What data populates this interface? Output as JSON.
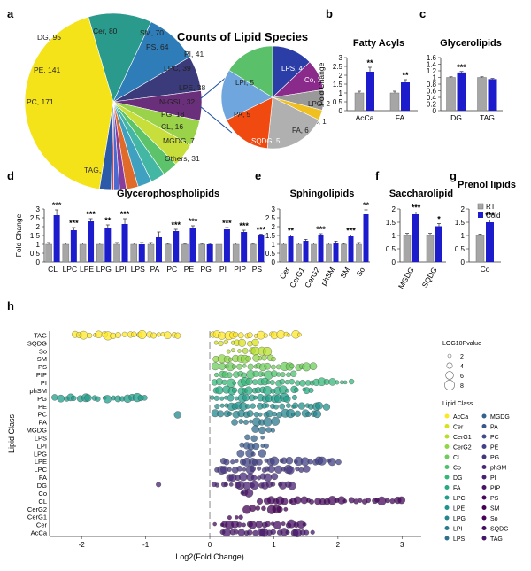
{
  "panel_letters": [
    "a",
    "b",
    "c",
    "d",
    "e",
    "f",
    "g",
    "h"
  ],
  "colors": {
    "rt": "#a6a6a6",
    "cold": "#1c1ccc",
    "err": "#444444"
  },
  "chart_data": [
    {
      "id": "a",
      "type": "pie",
      "title": "Counts of Lipid Species",
      "slices": [
        {
          "label": "TAG, 635",
          "value": 635,
          "color": "#f5e31a"
        },
        {
          "label": "PC, 171",
          "value": 171,
          "color": "#2a9a8c"
        },
        {
          "label": "PE, 141",
          "value": 141,
          "color": "#2e7db8"
        },
        {
          "label": "DG, 95",
          "value": 95,
          "color": "#3b3a7a"
        },
        {
          "label": "Cer, 80",
          "value": 80,
          "color": "#6a2f7a"
        },
        {
          "label": "SM, 70",
          "value": 70,
          "color": "#9ad24a"
        },
        {
          "label": "PS, 64",
          "value": 64,
          "color": "#c8de3a"
        },
        {
          "label": "PI, 41",
          "value": 41,
          "color": "#5cc36a"
        },
        {
          "label": "LPC, 39",
          "value": 39,
          "color": "#44b6a4"
        },
        {
          "label": "LPE, 38",
          "value": 38,
          "color": "#3fa0c0"
        },
        {
          "label": "N-GSL, 32",
          "value": 32,
          "color": "#e06a2a"
        },
        {
          "label": "PG, 18",
          "value": 18,
          "color": "#8a3c9a"
        },
        {
          "label": "CL, 16",
          "value": 16,
          "color": "#4a6ad0"
        },
        {
          "label": "MGDG, 7",
          "value": 7,
          "color": "#d44"
        },
        {
          "label": "Others, 31",
          "value": 31,
          "color": "#2a5aa8"
        }
      ],
      "inset": [
        {
          "label": "LPS, 4",
          "value": 4,
          "color": "#2b3ea8"
        },
        {
          "label": "Co, 3",
          "value": 3,
          "color": "#8a2a8a"
        },
        {
          "label": "LPG, 2",
          "value": 2,
          "color": "#999999"
        },
        {
          "label": "So, 1",
          "value": 1,
          "color": "#f0c020"
        },
        {
          "label": "FA, 6",
          "value": 6,
          "color": "#b0b0b0"
        },
        {
          "label": "SQDG, 5",
          "value": 5,
          "color": "#f04a10"
        },
        {
          "label": "PA, 5",
          "value": 5,
          "color": "#6fa6dd"
        },
        {
          "label": "LPI, 5",
          "value": 5,
          "color": "#5ac06a"
        }
      ]
    },
    {
      "id": "b",
      "type": "bar",
      "title": "Fatty Acyls",
      "ylabel": "Fold Change",
      "ylim": [
        0,
        3
      ],
      "yticks": [
        "0",
        "0.5",
        "1",
        "1.5",
        "2",
        "2.5",
        "3"
      ],
      "categories": [
        "AcCa",
        "FA"
      ],
      "series": [
        {
          "name": "RT",
          "values": [
            1,
            1
          ]
        },
        {
          "name": "Cold",
          "values": [
            2.2,
            1.6
          ]
        }
      ],
      "errors": [
        [
          0.1,
          0.1
        ],
        [
          0.25,
          0.15
        ]
      ],
      "sig": [
        "**",
        "**"
      ]
    },
    {
      "id": "c",
      "type": "bar",
      "title": "Glycerolipids",
      "ylim": [
        0,
        1.6
      ],
      "yticks": [
        "0",
        "0.2",
        "0.4",
        "0.6",
        "0.8",
        "1",
        "1.2",
        "1.4",
        "1.6"
      ],
      "categories": [
        "DG",
        "TAG"
      ],
      "series": [
        {
          "name": "RT",
          "values": [
            1,
            1
          ]
        },
        {
          "name": "Cold",
          "values": [
            1.15,
            0.95
          ]
        }
      ],
      "errors": [
        [
          0.02,
          0.02
        ],
        [
          0.03,
          0.02
        ]
      ],
      "sig": [
        "***",
        ""
      ]
    },
    {
      "id": "d",
      "type": "bar",
      "title": "Glycerophospholipids",
      "ylabel": "Fold Change",
      "ylim": [
        0,
        3
      ],
      "yticks": [
        "0",
        "0.5",
        "1",
        "1.5",
        "2",
        "2.5",
        "3"
      ],
      "categories": [
        "CL",
        "LPC",
        "LPE",
        "LPG",
        "LPI",
        "LPS",
        "PA",
        "PC",
        "PE",
        "PG",
        "PI",
        "PIP",
        "PS"
      ],
      "series": [
        {
          "name": "RT",
          "values": [
            1,
            1,
            1,
            1,
            1,
            1,
            1,
            1,
            1,
            1,
            1,
            1,
            1
          ]
        },
        {
          "name": "Cold",
          "values": [
            2.65,
            1.8,
            2.3,
            1.9,
            2.15,
            1,
            1.4,
            1.75,
            1.95,
            1,
            1.85,
            1.7,
            1.5
          ]
        }
      ],
      "errors": [
        [
          0.1,
          0.08,
          0.08,
          0.08,
          0.1,
          0.08,
          0.1,
          0.05,
          0.05,
          0.05,
          0.08,
          0.08,
          0.05
        ],
        [
          0.3,
          0.15,
          0.15,
          0.2,
          0.3,
          0.1,
          0.3,
          0.1,
          0.1,
          0.05,
          0.1,
          0.1,
          0.08
        ]
      ],
      "sig": [
        "***",
        "***",
        "***",
        "**",
        "***",
        "",
        "",
        "***",
        "***",
        "",
        "***",
        "***",
        "***"
      ]
    },
    {
      "id": "e",
      "type": "bar",
      "title": "Sphingolipids",
      "ylim": [
        0,
        3
      ],
      "yticks": [
        "0",
        "0.5",
        "1",
        "1.5",
        "2",
        "2.5",
        "3"
      ],
      "categories": [
        "Cer",
        "CerG1",
        "CerG2",
        "phSM",
        "SM",
        "So"
      ],
      "series": [
        {
          "name": "RT",
          "values": [
            1,
            1,
            1,
            1,
            1,
            1
          ]
        },
        {
          "name": "Cold",
          "values": [
            1.45,
            1.2,
            1.5,
            1.1,
            1.45,
            2.7
          ]
        }
      ],
      "errors": [
        [
          0.08,
          0.08,
          0.08,
          0.08,
          0.05,
          0.1
        ],
        [
          0.08,
          0.08,
          0.1,
          0.08,
          0.08,
          0.25
        ]
      ],
      "sig": [
        "**",
        "",
        "***",
        "",
        "***",
        "**"
      ]
    },
    {
      "id": "f",
      "type": "bar",
      "title": "Saccharolipid",
      "ylim": [
        0,
        2
      ],
      "yticks": [
        "0",
        "0.5",
        "1",
        "1.5",
        "2"
      ],
      "categories": [
        "MGDG",
        "SQDG"
      ],
      "series": [
        {
          "name": "RT",
          "values": [
            1,
            1
          ]
        },
        {
          "name": "Cold",
          "values": [
            1.8,
            1.35
          ]
        }
      ],
      "errors": [
        [
          0.08,
          0.08
        ],
        [
          0.08,
          0.1
        ]
      ],
      "sig": [
        "***",
        "*"
      ]
    },
    {
      "id": "g",
      "type": "bar",
      "title": "Prenol lipids",
      "ylim": [
        0,
        2
      ],
      "yticks": [
        "0",
        "0.5",
        "1",
        "1.5",
        "2"
      ],
      "categories": [
        "Co"
      ],
      "series": [
        {
          "name": "RT",
          "values": [
            1
          ]
        },
        {
          "name": "Cold",
          "values": [
            1.5
          ]
        }
      ],
      "errors": [
        [
          0.05
        ],
        [
          0.08
        ]
      ],
      "sig": [
        "***"
      ],
      "legend": [
        "RT",
        "Cold"
      ]
    },
    {
      "id": "h",
      "type": "scatter",
      "xlabel": "Log2(Fold Change)",
      "ylabel": "Lipid Class",
      "xlim": [
        -2.5,
        3.3
      ],
      "xticks": [
        "-2",
        "-1",
        "0",
        "1",
        "2",
        "3"
      ],
      "categories": [
        "TAG",
        "SQDG",
        "So",
        "SM",
        "PS",
        "PIP",
        "PI",
        "phSM",
        "PG",
        "PE",
        "PC",
        "PA",
        "MGDG",
        "LPS",
        "LPI",
        "LPG",
        "LPE",
        "LPC",
        "FA",
        "DG",
        "Co",
        "CL",
        "CerG2",
        "CerG1",
        "Cer",
        "AcCa"
      ],
      "ranges": {
        "TAG": [
          -2.1,
          -0.5,
          0.05,
          1.4
        ],
        "SQDG": [
          0.1,
          0.7
        ],
        "So": [
          0.3,
          0.9
        ],
        "SM": [
          0.1,
          1.0
        ],
        "PS": [
          0.1,
          1.6
        ],
        "PIP": [
          0.1,
          1.3
        ],
        "PI": [
          0.1,
          2.2
        ],
        "phSM": [
          0.1,
          1.6
        ],
        "PG": [
          -2.4,
          -1.0,
          0.05,
          1.3
        ],
        "PE": [
          0.1,
          1.8
        ],
        "PC": [
          -0.5,
          -0.5,
          0.1,
          1.7
        ],
        "PA": [
          0.4,
          1.0
        ],
        "MGDG": [
          0.7,
          1.0
        ],
        "LPS": [
          0.6,
          0.8
        ],
        "LPI": [
          0.5,
          0.9
        ],
        "LPG": [
          0.5,
          0.8
        ],
        "LPE": [
          0.2,
          2.0
        ],
        "LPC": [
          0.1,
          1.5
        ],
        "FA": [
          0.3,
          1.0
        ],
        "DG": [
          -0.8,
          -0.8,
          0.05,
          1.3
        ],
        "Co": [
          0.5,
          0.6
        ],
        "CL": [
          0.8,
          3.0
        ],
        "CerG2": [
          0.6,
          1.2
        ],
        "CerG1": [
          0.3,
          0.5
        ],
        "Cer": [
          0.1,
          1.5
        ],
        "AcCa": [
          0.2,
          1.6
        ]
      },
      "size_legend": {
        "title": "LOG10Pvalue",
        "values": [
          "2",
          "4",
          "6",
          "8"
        ]
      },
      "class_legend": {
        "title": "Lipid Class",
        "left": [
          "AcCa",
          "Cer",
          "CerG1",
          "CerG2",
          "CL",
          "Co",
          "DG",
          "FA",
          "LPC",
          "LPE",
          "LPG",
          "LPI",
          "LPS"
        ],
        "right": [
          "MGDG",
          "PA",
          "PC",
          "PE",
          "PG",
          "phSM",
          "PI",
          "PIP",
          "PS",
          "SM",
          "So",
          "SQDG",
          "TAG"
        ]
      }
    }
  ]
}
